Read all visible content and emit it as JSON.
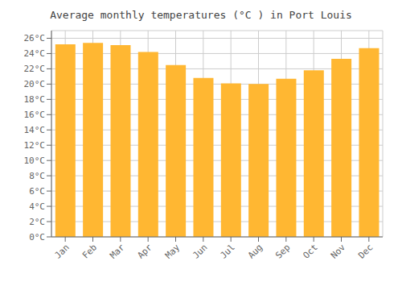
{
  "chart_data": {
    "type": "bar",
    "title": "Average monthly temperatures (°C ) in Port Louis",
    "categories": [
      "Jan",
      "Feb",
      "Mar",
      "Apr",
      "May",
      "Jun",
      "Jul",
      "Aug",
      "Sep",
      "Oct",
      "Nov",
      "Dec"
    ],
    "values": [
      25.2,
      25.4,
      25.1,
      24.2,
      22.5,
      20.8,
      20.1,
      20.0,
      20.7,
      21.8,
      23.3,
      24.7
    ],
    "color": "#FFB732",
    "ylim": [
      0,
      27
    ],
    "yticks": [
      {
        "value": 0,
        "label": "0°C"
      },
      {
        "value": 2,
        "label": "2°C"
      },
      {
        "value": 4,
        "label": "4°C"
      },
      {
        "value": 6,
        "label": "6°C"
      },
      {
        "value": 8,
        "label": "8°C"
      },
      {
        "value": 10,
        "label": "10°C"
      },
      {
        "value": 12,
        "label": "12°C"
      },
      {
        "value": 14,
        "label": "14°C"
      },
      {
        "value": 16,
        "label": "16°C"
      },
      {
        "value": 18,
        "label": "18°C"
      },
      {
        "value": 20,
        "label": "20°C"
      },
      {
        "value": 22,
        "label": "22°C"
      },
      {
        "value": 24,
        "label": "24°C"
      },
      {
        "value": 26,
        "label": "26°C"
      }
    ],
    "grid": true
  }
}
